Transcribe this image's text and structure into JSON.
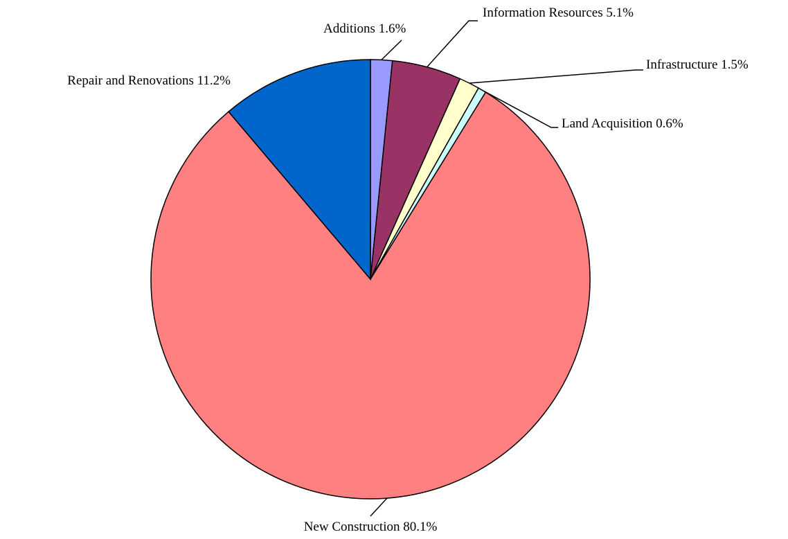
{
  "chart_data": {
    "type": "pie",
    "categories": [
      "Additions",
      "Information Resources",
      "Infrastructure",
      "Land Acquisition",
      "New Construction",
      "Repair and Renovations"
    ],
    "values": [
      1.6,
      5.1,
      1.5,
      0.6,
      80.1,
      11.2
    ],
    "value_labels": [
      "1.6%",
      "5.1%",
      "1.5%",
      "0.6%",
      "80.1%",
      "11.2%"
    ],
    "colors": [
      "#9999ff",
      "#993366",
      "#ffffcc",
      "#ccffff",
      "#ff8080",
      "#0066cc"
    ]
  }
}
